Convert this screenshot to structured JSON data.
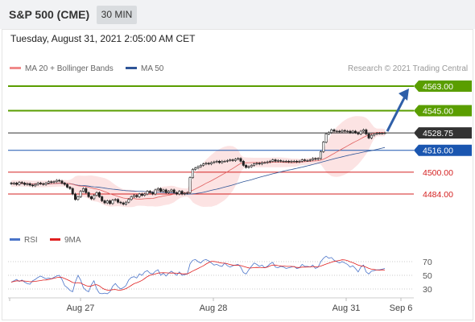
{
  "header": {
    "instrument": "S&P 500 (CME)",
    "timeframe": "30 MIN"
  },
  "date_line": "Tuesday, August 31, 2021 2:05:00 AM CET",
  "legend": {
    "ma20": {
      "label": "MA 20 + Bollinger Bands",
      "color": "#f08a8a"
    },
    "ma50": {
      "label": "MA 50",
      "color": "#2f5597"
    }
  },
  "copyright": "Research © 2021 Trading Central",
  "rsi_legend": {
    "rsi": {
      "label": "RSI",
      "color": "#4a74c9"
    },
    "ma9": {
      "label": "9MA",
      "color": "#e02020"
    }
  },
  "chart_data": [
    {
      "type": "candlestick",
      "ylim": [
        4474,
        4570
      ],
      "x_ticks": [
        "Aug 27",
        "Aug 28",
        "Aug 31",
        "Sep 6"
      ],
      "levels": [
        {
          "label": "4563.00",
          "value": 4563.0,
          "kind": "resistance",
          "color": "#5a9e00"
        },
        {
          "label": "4545.00",
          "value": 4545.0,
          "kind": "resistance",
          "color": "#5a9e00"
        },
        {
          "label": "4528.75",
          "value": 4528.75,
          "kind": "last",
          "color": "#333333"
        },
        {
          "label": "4516.00",
          "value": 4516.0,
          "kind": "pivot",
          "color": "#1a56b0"
        },
        {
          "label": "4500.00",
          "value": 4500.0,
          "kind": "support",
          "color": "#d42020"
        },
        {
          "label": "4484.00",
          "value": 4484.0,
          "kind": "support",
          "color": "#d42020"
        }
      ],
      "close": [
        4491.5,
        4492,
        4491,
        4492.5,
        4492,
        4491,
        4491.5,
        4490.5,
        4490,
        4491,
        4492,
        4491.5,
        4491,
        4492,
        4493,
        4492.5,
        4493,
        4494,
        4493.5,
        4492,
        4491,
        4489,
        4488,
        4484,
        4480,
        4482,
        4486,
        4488,
        4485,
        4482,
        4480.5,
        4483,
        4485,
        4482,
        4479,
        4477.5,
        4479,
        4477,
        4479.5,
        4480,
        4478,
        4477.5,
        4476.5,
        4478,
        4480,
        4482,
        4483,
        4482,
        4484,
        4483,
        4484,
        4486,
        4485,
        4484,
        4487,
        4488,
        4486,
        4487,
        4485,
        4486,
        4487,
        4485,
        4484,
        4486,
        4484,
        4484.5,
        4485,
        4496,
        4502,
        4503,
        4504,
        4505,
        4506,
        4506.5,
        4506,
        4507,
        4507.5,
        4508,
        4507,
        4508,
        4508,
        4508.5,
        4509,
        4508.5,
        4509.5,
        4510,
        4508,
        4505,
        4503.5,
        4504,
        4505,
        4506,
        4506.5,
        4506,
        4507,
        4507,
        4507.5,
        4508,
        4509,
        4508,
        4508.5,
        4508,
        4508,
        4508,
        4507.5,
        4508,
        4508,
        4507.5,
        4508,
        4509,
        4508.5,
        4508.5,
        4509,
        4510,
        4509.5,
        4510,
        4515,
        4522,
        4528,
        4529,
        4531,
        4530,
        4530,
        4529.5,
        4530.5,
        4530,
        4530,
        4529,
        4530,
        4529,
        4528,
        4530,
        4531,
        4528,
        4525,
        4527,
        4528,
        4528.5,
        4528.5,
        4528.5,
        4528.75
      ],
      "rsi": [
        40,
        42,
        44,
        41,
        43,
        40,
        38,
        37,
        42,
        44,
        47,
        49,
        47,
        45,
        46,
        45,
        47,
        49,
        50,
        44,
        35,
        32,
        28,
        26,
        40,
        50,
        43,
        32,
        28,
        26,
        36,
        42,
        30,
        24,
        23,
        24,
        23,
        26,
        34,
        38,
        33,
        30,
        32,
        35,
        43,
        47,
        48,
        46,
        52,
        50,
        55,
        57,
        53,
        52,
        56,
        58,
        50,
        53,
        49,
        53,
        56,
        53,
        50,
        55,
        50,
        51,
        52,
        67,
        72,
        73,
        70,
        68,
        72,
        73,
        71,
        68,
        65,
        66,
        64,
        63,
        68,
        64,
        62,
        64,
        65,
        66,
        62,
        54,
        52,
        58,
        63,
        68,
        66,
        63,
        65,
        61,
        63,
        67,
        69,
        62,
        61,
        63,
        62,
        60,
        61,
        62,
        63,
        60,
        61,
        66,
        63,
        63,
        62,
        65,
        60,
        62,
        70,
        75,
        78,
        75,
        76,
        72,
        70,
        68,
        70,
        68,
        66,
        62,
        64,
        60,
        55,
        62,
        65,
        55,
        52,
        56,
        57,
        58,
        58,
        59,
        60
      ]
    }
  ],
  "rsi_panel": {
    "levels": [
      "70",
      "50",
      "30"
    ]
  }
}
